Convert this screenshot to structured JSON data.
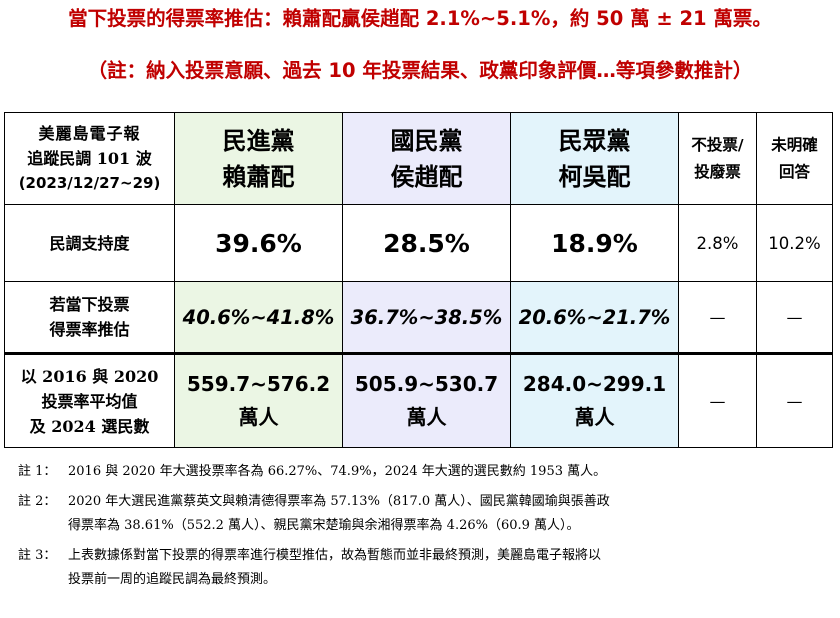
{
  "title": "當下投票的得票率推估：賴蕭配贏侯趙配 2.1%~5.1%，約 50 萬 ± 21 萬票。",
  "subtitle": "（註：納入投票意願、過去 10 年投票結果、政黨印象評價…等項參數推計）",
  "table": {
    "header_label": [
      "美麗島電子報",
      "追蹤民調 101 波",
      "(2023/12/27~29)"
    ],
    "candidates": [
      {
        "party": "民進黨",
        "names": "賴蕭配"
      },
      {
        "party": "國民黨",
        "names": "侯趙配"
      },
      {
        "party": "民眾黨",
        "names": "柯吳配"
      }
    ],
    "col_no_vote": [
      "不投票/",
      "投廢票"
    ],
    "col_undecided": [
      "未明確",
      "回答"
    ],
    "rows": {
      "support": {
        "label": "民調支持度",
        "values": [
          "39.6%",
          "28.5%",
          "18.9%",
          "2.8%",
          "10.2%"
        ]
      },
      "estimate": {
        "label": [
          "若當下投票",
          "得票率推估"
        ],
        "values": [
          "40.6%~41.8%",
          "36.7%~38.5%",
          "20.6%~21.7%",
          "—",
          "—"
        ]
      },
      "votes": {
        "label": [
          "以 2016 與 2020",
          "投票率平均值",
          "及 2024 選民數"
        ],
        "values": [
          "559.7~576.2",
          "505.9~530.7",
          "284.0~299.1"
        ],
        "unit": "萬人",
        "others": [
          "—",
          "—"
        ]
      }
    }
  },
  "notes": [
    {
      "tag": "註 1：",
      "lines": [
        "2016 與 2020 年大選投票率各為 66.27%、74.9%，2024 年大選的選民數約 1953 萬人。"
      ]
    },
    {
      "tag": "註 2：",
      "lines": [
        "2020 年大選民進黨蔡英文與賴清德得票率為 57.13%（817.0 萬人）、國民黨韓國瑜與張善政",
        "得票率為 38.61%（552.2 萬人）、親民黨宋楚瑜與余湘得票率為 4.26%（60.9 萬人）。"
      ]
    },
    {
      "tag": "註 3：",
      "lines": [
        "上表數據係對當下投票的得票率進行模型推估，故為暫態而並非最終預測，美麗島電子報將以",
        "投票前一周的追蹤民調為最終預測。"
      ]
    }
  ],
  "colors": {
    "title": "#c00000",
    "dpp": "#1f8f1f",
    "kmt": "#1f3fa0",
    "tpp": "#2190c8",
    "dpp_bg": "#ebf6e4",
    "kmt_bg": "#ebebfb",
    "tpp_bg": "#e3f4fb"
  }
}
